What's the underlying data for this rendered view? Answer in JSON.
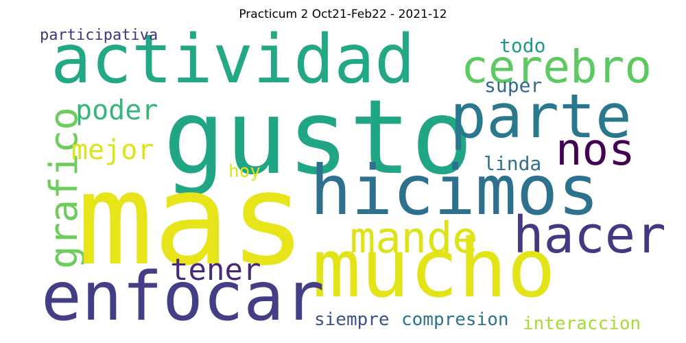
{
  "title": "Practicum 2 Oct21-Feb22 - 2021-12",
  "words": [
    {
      "text": "actividad",
      "color": "#22a884"
    },
    {
      "text": "gusto",
      "color": "#21a685"
    },
    {
      "text": "cerebro",
      "color": "#5ec962"
    },
    {
      "text": "parte",
      "color": "#2a788e"
    },
    {
      "text": "participativa",
      "color": "#46327e"
    },
    {
      "text": "todo",
      "color": "#1f988b"
    },
    {
      "text": "super",
      "color": "#31688e"
    },
    {
      "text": "poder",
      "color": "#35b779"
    },
    {
      "text": "grafico",
      "color": "#6ccd5a"
    },
    {
      "text": "mejor",
      "color": "#dde318"
    },
    {
      "text": "nos",
      "color": "#440154"
    },
    {
      "text": "hoy",
      "color": "#dde318"
    },
    {
      "text": "linda",
      "color": "#2d708e"
    },
    {
      "text": "hicimos",
      "color": "#2d718e"
    },
    {
      "text": "mas",
      "color": "#e7e419"
    },
    {
      "text": "mande",
      "color": "#dde318"
    },
    {
      "text": "hacer",
      "color": "#453781"
    },
    {
      "text": "tener",
      "color": "#482878"
    },
    {
      "text": "mucho",
      "color": "#e2e418"
    },
    {
      "text": "enfocar",
      "color": "#433e85"
    },
    {
      "text": "siempre",
      "color": "#3b528b"
    },
    {
      "text": "compresion",
      "color": "#2c728e"
    },
    {
      "text": "interaccion",
      "color": "#a5db36"
    }
  ]
}
